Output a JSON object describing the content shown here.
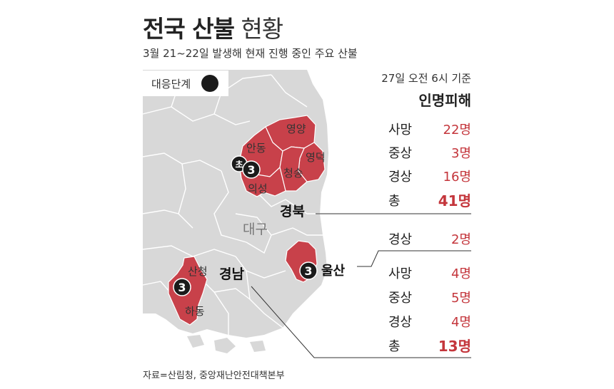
{
  "header": {
    "title_bold": "전국 산불",
    "title_light": "현황",
    "subtitle": "3월 21~22일 발생해 현재 진행 중인 주요 산불"
  },
  "legend": {
    "label": "대응단계"
  },
  "basis": "27일 오전 6시 기준",
  "stats_title": "인명피해",
  "gyeongbuk": {
    "name": "경북",
    "rows": [
      {
        "label": "사망",
        "value": "22명"
      },
      {
        "label": "중상",
        "value": "3명"
      },
      {
        "label": "경상",
        "value": "16명"
      },
      {
        "label": "총",
        "value": "41명"
      }
    ]
  },
  "ulsan": {
    "name": "울산",
    "rows": [
      {
        "label": "경상",
        "value": "2명"
      }
    ]
  },
  "gyeongnam": {
    "name": "경남",
    "rows": [
      {
        "label": "사망",
        "value": "4명"
      },
      {
        "label": "중상",
        "value": "5명"
      },
      {
        "label": "경상",
        "value": "4명"
      },
      {
        "label": "총",
        "value": "13명"
      }
    ]
  },
  "map": {
    "places": {
      "yeongyang": "영양",
      "andong": "안동",
      "yeongdeok": "영덕",
      "cheongsong": "청송",
      "uiseong": "의성",
      "daegu": "대구",
      "sancheong": "산청",
      "hadong": "하동"
    },
    "badges": {
      "uiseong_initial": "초",
      "uiseong_level": "3",
      "ulsan_level": "3",
      "sancheong_level": "3"
    }
  },
  "source": "자료=산림청, 중앙재난안전대책본부",
  "colors": {
    "land": "#d8d8d8",
    "border": "#ffffff",
    "fire": "#c8414a",
    "badge": "#1b1b1b",
    "accent_text": "#c4363c"
  }
}
